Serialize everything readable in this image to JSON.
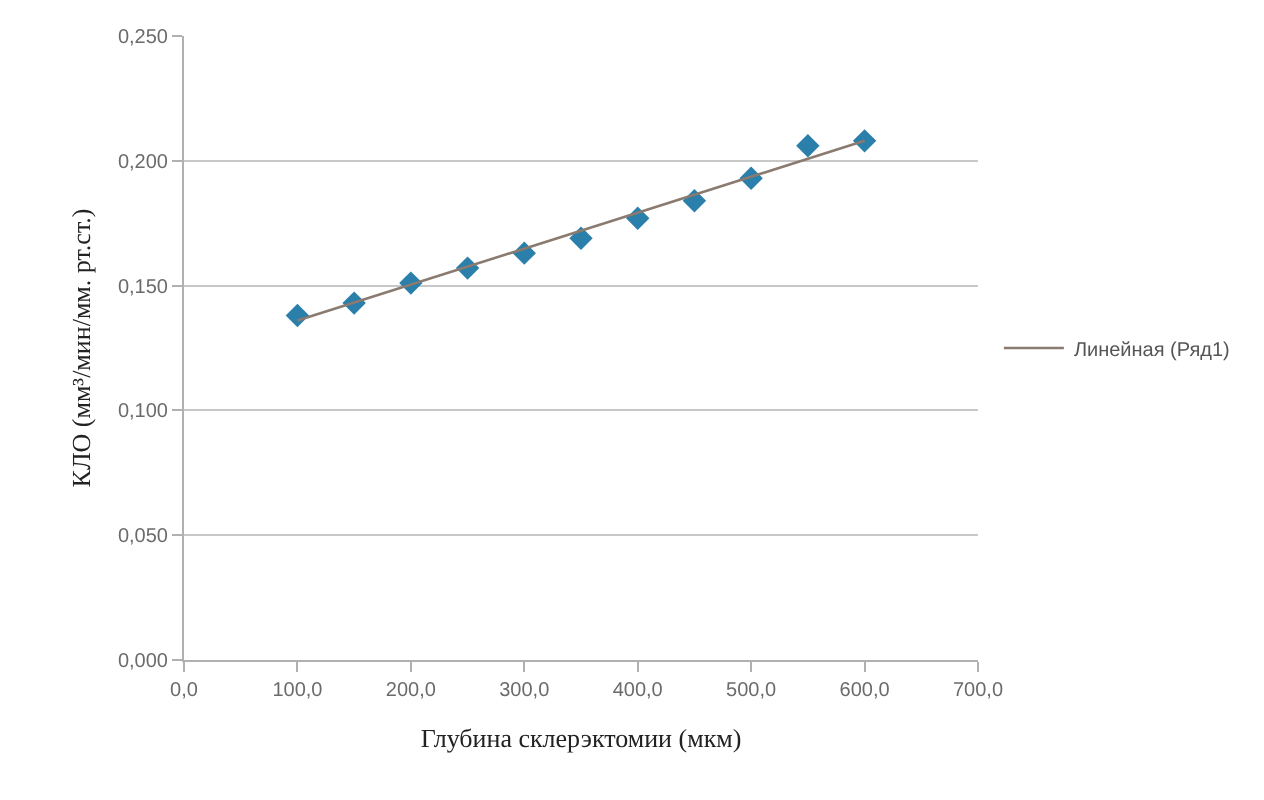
{
  "chart_data": {
    "type": "scatter",
    "xlabel": "Глубина склерэктомии (мкм)",
    "ylabel": "КЛО (мм³/мин/мм. рт.ст.)",
    "x": [
      100,
      150,
      200,
      250,
      300,
      350,
      400,
      450,
      500,
      550,
      600
    ],
    "series": [
      {
        "color": "#2a7fab",
        "marker": "diamond",
        "values": [
          0.138,
          0.143,
          0.151,
          0.157,
          0.163,
          0.169,
          0.177,
          0.184,
          0.193,
          0.206,
          0.208
        ]
      },
      {
        "type": "line",
        "name": "Линейная (Ряд1)",
        "color": "#8a7a70",
        "marker": "none",
        "x": [
          100,
          600
        ],
        "values": [
          0.136,
          0.208
        ]
      }
    ],
    "xlim": [
      0,
      700
    ],
    "xticks": [
      {
        "value": 0,
        "label": "0,0"
      },
      {
        "value": 100,
        "label": "100,0"
      },
      {
        "value": 200,
        "label": "200,0"
      },
      {
        "value": 300,
        "label": "300,0"
      },
      {
        "value": 400,
        "label": "400,0"
      },
      {
        "value": 500,
        "label": "500,0"
      },
      {
        "value": 600,
        "label": "600,0"
      },
      {
        "value": 700,
        "label": "700,0"
      }
    ],
    "ylim": [
      0,
      0.25
    ],
    "yticks": [
      {
        "value": 0,
        "label": "0,000"
      },
      {
        "value": 0.05,
        "label": "0,050"
      },
      {
        "value": 0.1,
        "label": "0,100"
      },
      {
        "value": 0.15,
        "label": "0,150"
      },
      {
        "value": 0.2,
        "label": "0,200"
      },
      {
        "value": 0.25,
        "label": "0,250"
      }
    ],
    "grid": "y",
    "legend": "right"
  }
}
